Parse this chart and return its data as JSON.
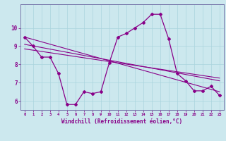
{
  "xlabel": "Windchill (Refroidissement éolien,°C)",
  "background_color": "#cce8ee",
  "line_color": "#880088",
  "xlim": [
    -0.5,
    23.5
  ],
  "ylim": [
    5.5,
    11.3
  ],
  "xticks": [
    0,
    1,
    2,
    3,
    4,
    5,
    6,
    7,
    8,
    9,
    10,
    11,
    12,
    13,
    14,
    15,
    16,
    17,
    18,
    19,
    20,
    21,
    22,
    23
  ],
  "yticks": [
    6,
    7,
    8,
    9,
    10
  ],
  "main_series": [
    [
      0,
      9.5
    ],
    [
      1,
      9.0
    ],
    [
      2,
      8.4
    ],
    [
      3,
      8.4
    ],
    [
      4,
      7.5
    ],
    [
      5,
      5.8
    ],
    [
      6,
      5.8
    ],
    [
      7,
      6.5
    ],
    [
      8,
      6.4
    ],
    [
      9,
      6.5
    ],
    [
      10,
      8.1
    ],
    [
      11,
      9.5
    ],
    [
      12,
      9.7
    ],
    [
      13,
      10.0
    ],
    [
      14,
      10.3
    ],
    [
      15,
      10.75
    ],
    [
      16,
      10.75
    ],
    [
      17,
      9.4
    ],
    [
      18,
      7.5
    ],
    [
      19,
      7.1
    ],
    [
      20,
      6.55
    ],
    [
      21,
      6.55
    ],
    [
      22,
      6.8
    ],
    [
      23,
      6.3
    ]
  ],
  "regression_lines": [
    {
      "x": [
        0,
        23
      ],
      "y": [
        9.5,
        6.5
      ]
    },
    {
      "x": [
        0,
        23
      ],
      "y": [
        9.1,
        7.1
      ]
    },
    {
      "x": [
        0,
        23
      ],
      "y": [
        8.85,
        7.25
      ]
    }
  ],
  "grid_color": "#aad4dd",
  "spine_color": "#7777aa"
}
